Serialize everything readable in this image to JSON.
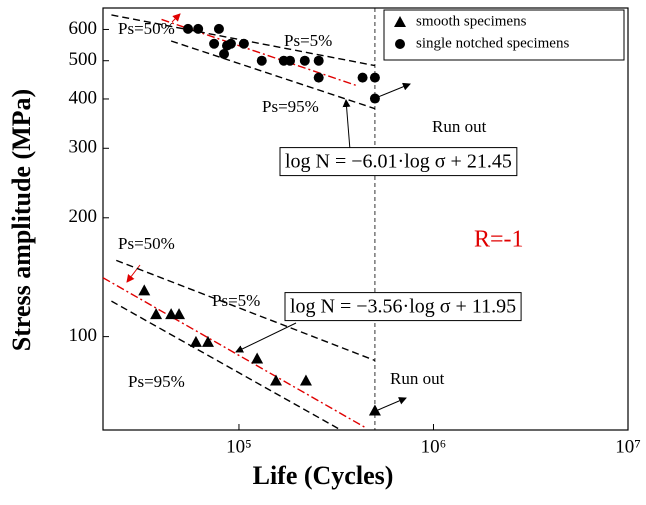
{
  "chart_data": {
    "type": "scatter",
    "log_x": true,
    "log_y": true,
    "x_label": "Life (Cycles)",
    "y_label": "Stress amplitude (MPa)",
    "xlim": [
      20000,
      10000000
    ],
    "xticks": [
      {
        "value": 100000,
        "label": "10⁵"
      },
      {
        "value": 1000000,
        "label": "10⁶"
      },
      {
        "value": 10000000,
        "label": "10⁷"
      }
    ],
    "ylim": [
      58,
      680
    ],
    "yticks": [
      100,
      200,
      300,
      400,
      500,
      600
    ],
    "legend": "top-right",
    "series": [
      {
        "name": "smooth specimens",
        "marker": "triangle",
        "color": "#000000",
        "x": [
          32600,
          37500,
          44800,
          49200,
          60100,
          69300,
          124000,
          155000,
          221000,
          500000
        ],
        "values": [
          131,
          114,
          114,
          114,
          97,
          97,
          88,
          77.4,
          77.4,
          65
        ]
      },
      {
        "name": "single notched specimens",
        "marker": "circle",
        "color": "#000000",
        "x": [
          54700,
          61700,
          74500,
          78900,
          83800,
          86800,
          90900,
          106000,
          131000,
          170000,
          183000,
          218000,
          257000,
          257000,
          432000,
          500000,
          500000
        ],
        "values": [
          602,
          602,
          552,
          602,
          520,
          546,
          552,
          552,
          500,
          500,
          500,
          500,
          500,
          453,
          453,
          453,
          401
        ]
      }
    ],
    "lines": [
      {
        "color": "#e00000",
        "dash": "dashdot",
        "x": [
          40000,
          400000
        ],
        "values": [
          636,
          433
        ]
      },
      {
        "color": "#000000",
        "dash": "dash",
        "x": [
          22100,
          500000
        ],
        "values": [
          653,
          486
        ]
      },
      {
        "color": "#000000",
        "dash": "dash",
        "x": [
          44800,
          500000
        ],
        "values": [
          561,
          378
        ]
      },
      {
        "color": "#e00000",
        "dash": "dashdot",
        "x": [
          20000,
          450000
        ],
        "values": [
          141,
          58.7
        ]
      },
      {
        "color": "#000000",
        "dash": "dash",
        "x": [
          23400,
          500000
        ],
        "values": [
          156,
          87
        ]
      },
      {
        "color": "#000000",
        "dash": "dash",
        "x": [
          22100,
          334000
        ],
        "values": [
          123,
          58
        ]
      }
    ],
    "runout_x": 500000,
    "annotations": [
      "Ps=50%",
      "Ps=5%",
      "Ps=95%",
      "Run out",
      "log N = −6.01·log σ + 21.45",
      "Ps=50%",
      "Ps=5%",
      "Ps=95%",
      "Run out",
      "log N = −3.56·log σ + 11.95",
      "R=-1"
    ]
  }
}
